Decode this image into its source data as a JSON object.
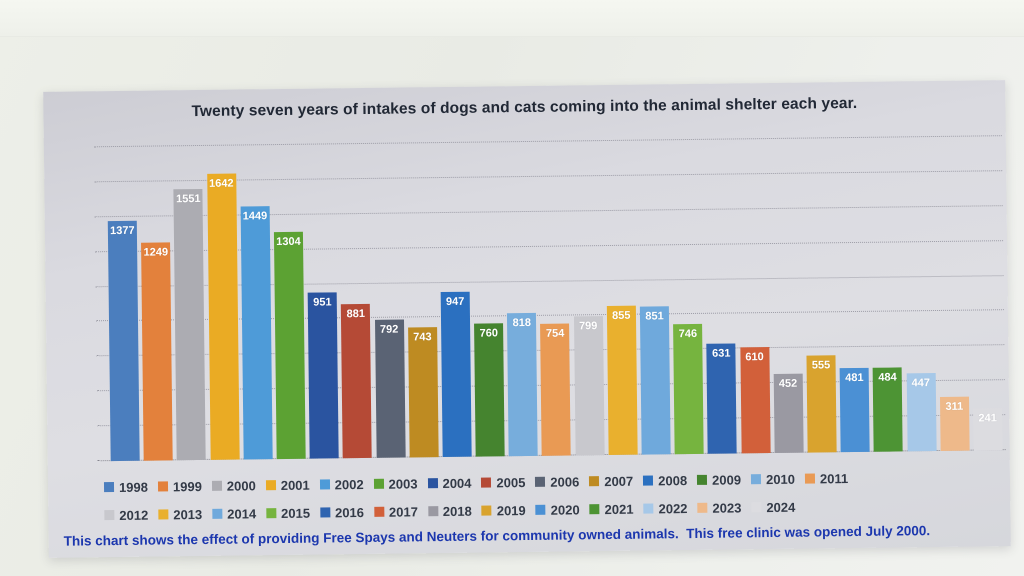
{
  "chart_data": {
    "type": "bar",
    "title": "Twenty seven years of intakes of dogs and cats coming into the animal shelter each year.",
    "categories": [
      "1998",
      "1999",
      "2000",
      "2001",
      "2002",
      "2003",
      "2004",
      "2005",
      "2006",
      "2007",
      "2008",
      "2009",
      "2010",
      "2011",
      "2012",
      "2013",
      "2014",
      "2015",
      "2016",
      "2017",
      "2018",
      "2019",
      "2020",
      "2021",
      "2022",
      "2023",
      "2024"
    ],
    "values": [
      1377,
      1249,
      1551,
      1642,
      1449,
      1304,
      951,
      881,
      792,
      743,
      947,
      760,
      818,
      754,
      799,
      855,
      851,
      746,
      631,
      610,
      452,
      555,
      481,
      484,
      447,
      311,
      241
    ],
    "colors": [
      "#4b7ebe",
      "#e3813c",
      "#acacb2",
      "#eaab24",
      "#4e9bd8",
      "#5ca233",
      "#2a54a0",
      "#b54a36",
      "#5a6374",
      "#be8b22",
      "#2b70c0",
      "#45842f",
      "#77addc",
      "#e99a54",
      "#c8c8cd",
      "#e9b02e",
      "#6fa9dc",
      "#76b43f",
      "#2f64b0",
      "#d2603a",
      "#9a99a2",
      "#d9a32e",
      "#4b90d4",
      "#4d9434",
      "#a6c8e8",
      "#eeb98a",
      "#dcdce0"
    ],
    "xlabel": "",
    "ylabel": "",
    "ylim": [
      0,
      1800
    ],
    "gridline_step": 200,
    "grid": "dotted horizontal, no axis value labels",
    "bar_label_color": "#ffffff",
    "legend_position": "bottom",
    "legend_rows": [
      [
        "1998",
        "1999",
        "2000",
        "2001",
        "2002",
        "2003",
        "2004",
        "2005",
        "2006",
        "2007",
        "2008",
        "2009",
        "2010",
        "2011"
      ],
      [
        "2012",
        "2013",
        "2014",
        "2015",
        "2016",
        "2017",
        "2018",
        "2019",
        "2020",
        "2021",
        "2022",
        "2023",
        "2024"
      ]
    ],
    "caption": "This chart shows the effect of providing Free Spays and Neuters for community owned animals.  This free clinic was opened July 2000."
  }
}
